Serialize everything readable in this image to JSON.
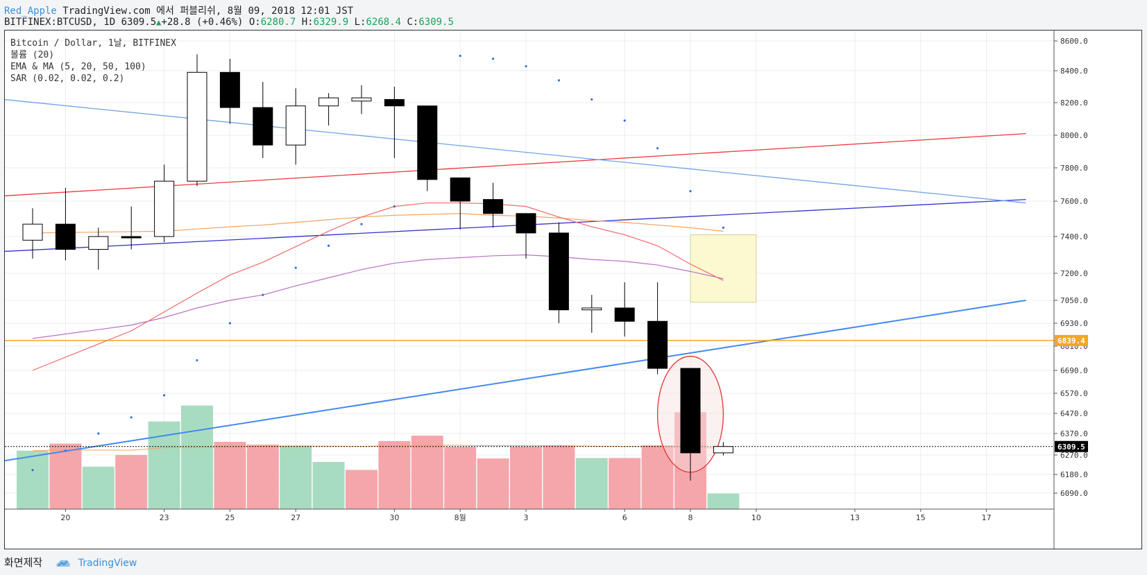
{
  "header": {
    "user": "Red_Apple",
    "source": "TradingView.com 에서 퍼블리쉬, 8월 09, 2018 12:01 JST",
    "symbol": "BITFINEX:BTCUSD, 1D",
    "last": "6309.5",
    "change": "+28.8 (+0.46%)",
    "o_label": "O:",
    "o": "6280.7",
    "h_label": "H:",
    "h": "6329.9",
    "l_label": "L:",
    "l": "6268.4",
    "c_label": "C:",
    "c": "6309.5",
    "arrow": "▲"
  },
  "legend": {
    "line1": "Bitcoin / Dollar, 1날, BITFINEX",
    "line2": "볼륨 (20)",
    "line3": "EMA & MA (5, 20, 50, 100)",
    "line4": "SAR (0.02, 0.02, 0.2)"
  },
  "footer": {
    "made_with": "화면제작",
    "brand": "TradingView"
  },
  "colors": {
    "up_body": "#ffffff",
    "down_body": "#000000",
    "vol_up": "#a8dcc0",
    "vol_down": "#f4a6ab",
    "ema_red": "#f26868",
    "ema_purple": "#b770c4",
    "ma_orange": "#f5a35c",
    "trend_red": "#ee3a3a",
    "trend_navy": "#3333cc",
    "trend_blue": "#4488ee",
    "trend_lightblue": "#6fa3e6",
    "hline_orange": "#f5a623",
    "sar_dot": "#2f6fd6"
  },
  "chart_data": {
    "type": "candlestick",
    "price_axis_ticks": [
      8600,
      8400,
      8200,
      8000,
      7800,
      7600,
      7400,
      7200,
      7050,
      6930,
      6810,
      6690,
      6570,
      6470,
      6370,
      6270,
      6180,
      6090
    ],
    "price_tick_labels": [
      "8600.0",
      "8400.0",
      "8200.0",
      "8000.0",
      "7800.0",
      "7600.0",
      "7400.0",
      "7200.0",
      "7050.0",
      "6930.0",
      "6810.0",
      "6690.0",
      "6570.0",
      "6470.0",
      "6370.0",
      "6270.0",
      "6180.0",
      "6090.0"
    ],
    "date_ticks": [
      {
        "label": "20",
        "idx": 1
      },
      {
        "label": "23",
        "idx": 4
      },
      {
        "label": "25",
        "idx": 6
      },
      {
        "label": "27",
        "idx": 8
      },
      {
        "label": "30",
        "idx": 11
      },
      {
        "label": "8월",
        "idx": 13
      },
      {
        "label": "3",
        "idx": 15
      },
      {
        "label": "6",
        "idx": 18
      },
      {
        "label": "8",
        "idx": 20
      },
      {
        "label": "10",
        "idx": 22
      },
      {
        "label": "13",
        "idx": 25
      },
      {
        "label": "15",
        "idx": 27
      },
      {
        "label": "17",
        "idx": 29
      }
    ],
    "candles": [
      {
        "o": 7380,
        "h": 7560,
        "l": 7280,
        "c": 7470
      },
      {
        "o": 7470,
        "h": 7680,
        "l": 7270,
        "c": 7330
      },
      {
        "o": 7330,
        "h": 7450,
        "l": 7220,
        "c": 7400
      },
      {
        "o": 7400,
        "h": 7570,
        "l": 7330,
        "c": 7395
      },
      {
        "o": 7400,
        "h": 7820,
        "l": 7370,
        "c": 7720
      },
      {
        "o": 7720,
        "h": 8510,
        "l": 7690,
        "c": 8390
      },
      {
        "o": 8390,
        "h": 8480,
        "l": 8070,
        "c": 8170
      },
      {
        "o": 8170,
        "h": 8330,
        "l": 7860,
        "c": 7940
      },
      {
        "o": 7940,
        "h": 8290,
        "l": 7820,
        "c": 8180
      },
      {
        "o": 8180,
        "h": 8260,
        "l": 8060,
        "c": 8230
      },
      {
        "o": 8210,
        "h": 8310,
        "l": 8130,
        "c": 8230
      },
      {
        "o": 8220,
        "h": 8300,
        "l": 7860,
        "c": 8180
      },
      {
        "o": 8180,
        "h": 8180,
        "l": 7660,
        "c": 7730
      },
      {
        "o": 7740,
        "h": 7740,
        "l": 7440,
        "c": 7600
      },
      {
        "o": 7610,
        "h": 7710,
        "l": 7450,
        "c": 7530
      },
      {
        "o": 7530,
        "h": 7530,
        "l": 7280,
        "c": 7420
      },
      {
        "o": 7420,
        "h": 7480,
        "l": 6930,
        "c": 7000
      },
      {
        "o": 7000,
        "h": 7080,
        "l": 6880,
        "c": 7010
      },
      {
        "o": 7010,
        "h": 7150,
        "l": 6860,
        "c": 6940
      },
      {
        "o": 6940,
        "h": 7150,
        "l": 6670,
        "c": 6700
      },
      {
        "o": 6700,
        "h": 6700,
        "l": 6150,
        "c": 6280
      },
      {
        "o": 6280,
        "h": 6330,
        "l": 6268,
        "c": 6309.5
      }
    ],
    "volume_up_flags": [
      1,
      0,
      1,
      0,
      1,
      1,
      0,
      0,
      1,
      1,
      0,
      0,
      0,
      0,
      0,
      0,
      0,
      1,
      0,
      0,
      0,
      1
    ],
    "volume": [
      6290,
      6323,
      6216,
      6270,
      6430,
      6509,
      6331,
      6318,
      6314,
      6238,
      6201,
      6335,
      6360,
      6308,
      6254,
      6309,
      6313,
      6256,
      6256,
      6315,
      6476,
      6088
    ],
    "volume_ma": [
      6290,
      6293,
      6293,
      6292,
      6304,
      6306,
      6308,
      6311,
      6311,
      6311,
      6310,
      6314,
      6316,
      6315,
      6313,
      6313,
      6314,
      6311,
      6310,
      6310,
      6303,
      6303
    ],
    "ema_red": [
      null,
      null,
      null,
      null,
      null,
      null,
      null,
      null,
      null,
      null,
      null,
      null,
      null,
      null,
      null,
      null,
      null,
      null,
      null,
      null,
      null,
      null
    ],
    "ema_red_pts": [
      [
        0,
        6690
      ],
      [
        3,
        6890
      ],
      [
        5,
        7090
      ],
      [
        6,
        7190
      ],
      [
        7,
        7260
      ],
      [
        8,
        7345
      ],
      [
        9,
        7430
      ],
      [
        10,
        7510
      ],
      [
        11,
        7570
      ],
      [
        12,
        7590
      ],
      [
        13,
        7590
      ],
      [
        14,
        7585
      ],
      [
        15,
        7570
      ],
      [
        16,
        7510
      ],
      [
        17,
        7455
      ],
      [
        18,
        7410
      ],
      [
        19,
        7350
      ],
      [
        20,
        7250
      ],
      [
        21,
        7160
      ]
    ],
    "ema_purple_pts": [
      [
        0,
        6850
      ],
      [
        3,
        6920
      ],
      [
        4,
        6960
      ],
      [
        5,
        7010
      ],
      [
        6,
        7050
      ],
      [
        7,
        7080
      ],
      [
        8,
        7130
      ],
      [
        9,
        7175
      ],
      [
        10,
        7220
      ],
      [
        11,
        7255
      ],
      [
        12,
        7275
      ],
      [
        13,
        7285
      ],
      [
        14,
        7295
      ],
      [
        15,
        7300
      ],
      [
        16,
        7290
      ],
      [
        17,
        7275
      ],
      [
        18,
        7265
      ],
      [
        19,
        7245
      ],
      [
        20,
        7210
      ],
      [
        21,
        7170
      ]
    ],
    "ma_orange_pts": [
      [
        0,
        7420
      ],
      [
        4,
        7430
      ],
      [
        6,
        7455
      ],
      [
        7,
        7465
      ],
      [
        8,
        7480
      ],
      [
        9,
        7495
      ],
      [
        10,
        7510
      ],
      [
        11,
        7520
      ],
      [
        12,
        7525
      ],
      [
        13,
        7530
      ],
      [
        14,
        7520
      ],
      [
        15,
        7515
      ],
      [
        16,
        7505
      ],
      [
        17,
        7490
      ],
      [
        18,
        7480
      ],
      [
        19,
        7465
      ],
      [
        20,
        7450
      ],
      [
        21,
        7430
      ]
    ],
    "sar": [
      [
        0,
        6200
      ],
      [
        1,
        6290
      ],
      [
        2,
        6370
      ],
      [
        3,
        6450
      ],
      [
        4,
        6560
      ],
      [
        5,
        6740
      ],
      [
        6,
        6930
      ],
      [
        7,
        7080
      ],
      [
        8,
        7230
      ],
      [
        9,
        7350
      ],
      [
        10,
        7470
      ],
      [
        11,
        7570
      ],
      [
        13,
        8500
      ],
      [
        14,
        8480
      ],
      [
        15,
        8430
      ],
      [
        16,
        8340
      ],
      [
        17,
        8220
      ],
      [
        18,
        8090
      ],
      [
        19,
        7920
      ],
      [
        20,
        7660
      ],
      [
        21,
        7450
      ]
    ],
    "trendlines": [
      {
        "name": "red",
        "a": [
          -1.84,
          7620
        ],
        "b": [
          30.2,
          8010
        ]
      },
      {
        "name": "navy",
        "a": [
          -1.84,
          7310
        ],
        "b": [
          30.2,
          7610
        ]
      },
      {
        "name": "lightblue",
        "a": [
          -1.84,
          8240
        ],
        "b": [
          30.2,
          7590
        ]
      },
      {
        "name": "blue",
        "a": [
          -1.84,
          6220
        ],
        "b": [
          30.2,
          7050
        ]
      }
    ],
    "horizontal_line": {
      "value": 6839.4,
      "label": "6839.4"
    },
    "last_price_line": {
      "value": 6309.5,
      "label": "6309.5"
    },
    "box_zone": {
      "x0": 20,
      "x1": 22,
      "top": 7410,
      "bottom": 7040
    },
    "ellipse_zone": {
      "cx": 20,
      "cy": 6480,
      "rx": 1,
      "top": 6760,
      "bottom": 6190
    }
  }
}
